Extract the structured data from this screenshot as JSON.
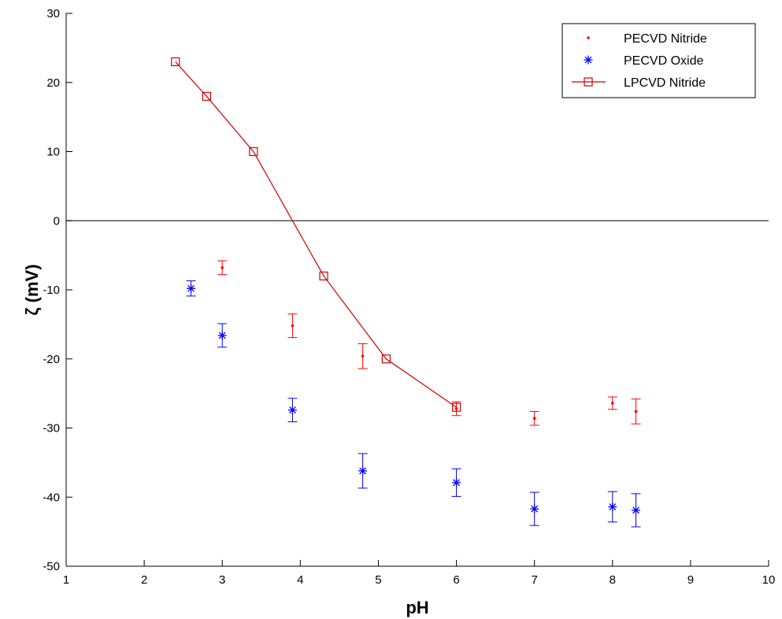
{
  "chart_data": {
    "type": "scatter",
    "xlabel": "pH",
    "ylabel": "ζ (mV)",
    "xlim": [
      1,
      10
    ],
    "ylim": [
      -50,
      30
    ],
    "xticks": [
      1,
      2,
      3,
      4,
      5,
      6,
      7,
      8,
      9,
      10
    ],
    "yticks": [
      -50,
      -40,
      -30,
      -20,
      -10,
      0,
      10,
      20,
      30
    ],
    "xtick_labels": [
      "1",
      "2",
      "3",
      "4",
      "5",
      "6",
      "7",
      "8",
      "9",
      "10"
    ],
    "ytick_labels": [
      "-50",
      "-40",
      "-30",
      "-20",
      "-10",
      "0",
      "10",
      "20",
      "30"
    ],
    "zero_line": true,
    "grid": false,
    "legend_position": "top-right",
    "series": [
      {
        "name": "PECVD Nitride",
        "style": "dot-errorbar",
        "color": "#ff0000",
        "x": [
          3.0,
          3.9,
          4.8,
          6.0,
          7.0,
          8.0,
          8.3
        ],
        "y": [
          -6.8,
          -15.2,
          -19.6,
          -27.2,
          -28.6,
          -26.4,
          -27.6
        ],
        "err": [
          1.0,
          1.7,
          1.8,
          1.0,
          1.0,
          0.9,
          1.8
        ]
      },
      {
        "name": "PECVD Oxide",
        "style": "star-errorbar",
        "color": "#0000ff",
        "x": [
          2.6,
          3.0,
          3.9,
          4.8,
          6.0,
          7.0,
          8.0,
          8.3
        ],
        "y": [
          -9.8,
          -16.6,
          -27.4,
          -36.2,
          -37.9,
          -41.7,
          -41.4,
          -41.9
        ],
        "err": [
          1.1,
          1.7,
          1.7,
          2.5,
          2.0,
          2.4,
          2.2,
          2.4
        ]
      },
      {
        "name": "LPCVD Nitride",
        "style": "line-square",
        "color": "#d00000",
        "x": [
          2.4,
          2.8,
          3.4,
          4.3,
          5.1,
          6.0
        ],
        "y": [
          23,
          18,
          10,
          -8,
          -20,
          -27
        ]
      }
    ]
  }
}
